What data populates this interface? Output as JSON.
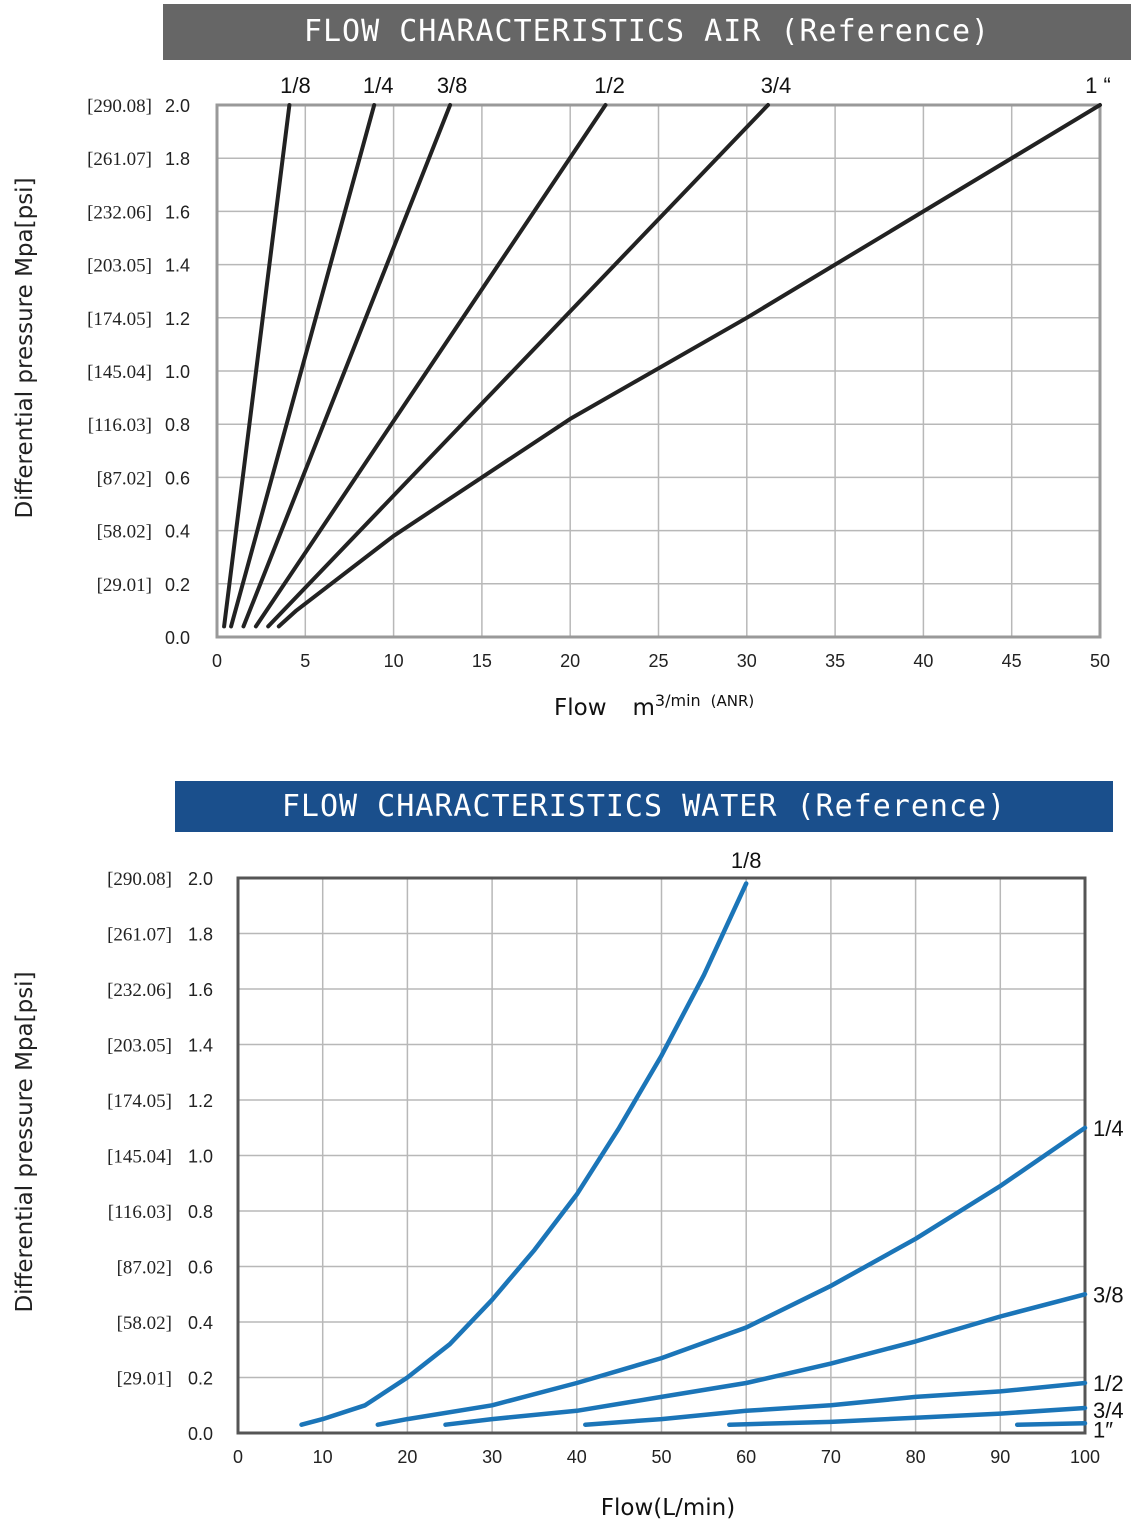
{
  "chart_data": [
    {
      "type": "line",
      "title": "FLOW CHARACTERISTICS  AIR (Reference)",
      "xlabel": "Flow",
      "xlabel_unit_main": "m",
      "xlabel_unit_sup": "3/min",
      "xlabel_unit_suffix": "(ANR)",
      "ylabel": "Differential pressure Mpa[psi]",
      "xlim": [
        0,
        50
      ],
      "ylim": [
        0,
        2.0
      ],
      "x_ticks": [
        "0",
        "5",
        "10",
        "15",
        "20",
        "25",
        "30",
        "35",
        "40",
        "45",
        "50"
      ],
      "y_ticks": [
        "0.0",
        "0.2",
        "0.4",
        "0.6",
        "0.8",
        "1.0",
        "1.2",
        "1.4",
        "1.6",
        "1.8",
        "2.0"
      ],
      "y_ticks_psi": [
        "",
        "[29.01]",
        "[58.02]",
        "[87.02]",
        "[116.03]",
        "[145.04]",
        "[174.05]",
        "[203.05]",
        "[232.06]",
        "[261.07]",
        "[290.08]"
      ],
      "grid": true,
      "line_color": "#222222",
      "series": [
        {
          "name": "1/8",
          "points": [
            [
              0.4,
              0.04
            ],
            [
              4.1,
              2.0
            ]
          ]
        },
        {
          "name": "1/4",
          "points": [
            [
              0.8,
              0.04
            ],
            [
              8.9,
              2.0
            ]
          ]
        },
        {
          "name": "3/8",
          "points": [
            [
              1.5,
              0.04
            ],
            [
              13.2,
              2.0
            ]
          ]
        },
        {
          "name": "1/2",
          "points": [
            [
              2.2,
              0.04
            ],
            [
              22.0,
              2.0
            ]
          ]
        },
        {
          "name": "3/4",
          "points": [
            [
              2.9,
              0.04
            ],
            [
              31.2,
              2.0
            ]
          ]
        },
        {
          "name": "1 “",
          "points": [
            [
              3.5,
              0.04
            ],
            [
              4.5,
              0.1
            ],
            [
              10,
              0.38
            ],
            [
              20,
              0.82
            ],
            [
              30,
              1.2
            ],
            [
              40,
              1.6
            ],
            [
              50,
              2.0
            ]
          ]
        }
      ]
    },
    {
      "type": "line",
      "title": "FLOW CHARACTERISTICS WATER (Reference)",
      "xlabel": "Flow(L/min)",
      "ylabel": "Differential pressure Mpa[psi]",
      "xlim": [
        0,
        100
      ],
      "ylim": [
        0,
        2.0
      ],
      "x_ticks": [
        "0",
        "10",
        "20",
        "30",
        "40",
        "50",
        "60",
        "70",
        "80",
        "90",
        "100"
      ],
      "y_ticks": [
        "0.0",
        "0.2",
        "0.4",
        "0.6",
        "0.8",
        "1.0",
        "1.2",
        "1.4",
        "1.6",
        "1.8",
        "2.0"
      ],
      "y_ticks_psi": [
        "",
        "[29.01]",
        "[58.02]",
        "[87.02]",
        "[116.03]",
        "[145.04]",
        "[174.05]",
        "[203.05]",
        "[232.06]",
        "[261.07]",
        "[290.08]"
      ],
      "grid": true,
      "line_color": "#1b75b8",
      "series": [
        {
          "name": "1/8",
          "points": [
            [
              7.5,
              0.03
            ],
            [
              10,
              0.05
            ],
            [
              15,
              0.1
            ],
            [
              20,
              0.2
            ],
            [
              25,
              0.32
            ],
            [
              30,
              0.48
            ],
            [
              35,
              0.66
            ],
            [
              40,
              0.86
            ],
            [
              45,
              1.1
            ],
            [
              50,
              1.36
            ],
            [
              55,
              1.65
            ],
            [
              60,
              1.98
            ]
          ]
        },
        {
          "name": "1/4",
          "points": [
            [
              16.5,
              0.03
            ],
            [
              20,
              0.05
            ],
            [
              30,
              0.1
            ],
            [
              40,
              0.18
            ],
            [
              50,
              0.27
            ],
            [
              60,
              0.38
            ],
            [
              70,
              0.53
            ],
            [
              80,
              0.7
            ],
            [
              90,
              0.89
            ],
            [
              100,
              1.1
            ]
          ]
        },
        {
          "name": "3/8",
          "points": [
            [
              24.5,
              0.03
            ],
            [
              30,
              0.05
            ],
            [
              40,
              0.08
            ],
            [
              50,
              0.13
            ],
            [
              60,
              0.18
            ],
            [
              70,
              0.25
            ],
            [
              80,
              0.33
            ],
            [
              90,
              0.42
            ],
            [
              100,
              0.5
            ]
          ]
        },
        {
          "name": "1/2",
          "points": [
            [
              41,
              0.03
            ],
            [
              50,
              0.05
            ],
            [
              60,
              0.08
            ],
            [
              70,
              0.1
            ],
            [
              80,
              0.13
            ],
            [
              90,
              0.15
            ],
            [
              100,
              0.18
            ]
          ]
        },
        {
          "name": "3/4",
          "points": [
            [
              58,
              0.03
            ],
            [
              70,
              0.04
            ],
            [
              80,
              0.055
            ],
            [
              90,
              0.07
            ],
            [
              100,
              0.09
            ]
          ]
        },
        {
          "name": "1″",
          "points": [
            [
              92,
              0.03
            ],
            [
              100,
              0.035
            ]
          ]
        }
      ]
    }
  ]
}
